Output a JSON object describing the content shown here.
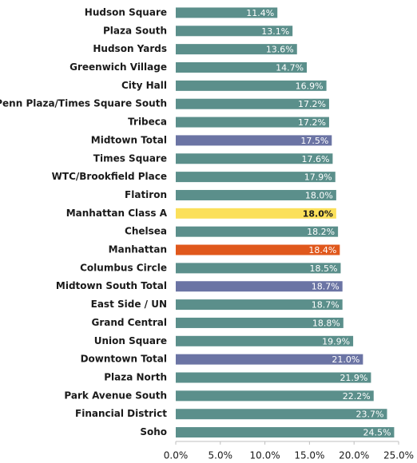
{
  "chart_data": {
    "type": "barh",
    "categories": [
      "Hudson Square",
      "Plaza South",
      "Hudson Yards",
      "Greenwich Village",
      "City Hall",
      "Penn Plaza/Times Square South",
      "Tribeca",
      "Midtown Total",
      "Times Square",
      "WTC/Brookfield Place",
      "Flatiron",
      "Manhattan Class A",
      "Chelsea",
      "Manhattan",
      "Columbus Circle",
      "Midtown South Total",
      "East Side / UN",
      "Grand Central",
      "Union Square",
      "Downtown Total",
      "Plaza North",
      "Park Avenue South",
      "Financial District",
      "Soho"
    ],
    "values": [
      11.4,
      13.1,
      13.6,
      14.7,
      16.9,
      17.2,
      17.2,
      17.5,
      17.6,
      17.9,
      18.0,
      18.0,
      18.2,
      18.4,
      18.5,
      18.7,
      18.7,
      18.8,
      19.9,
      21.0,
      21.9,
      22.2,
      23.7,
      24.5
    ],
    "value_labels": [
      "11.4%",
      "13.1%",
      "13.6%",
      "14.7%",
      "16.9%",
      "17.2%",
      "17.2%",
      "17.5%",
      "17.6%",
      "17.9%",
      "18.0%",
      "18.0%",
      "18.2%",
      "18.4%",
      "18.5%",
      "18.7%",
      "18.7%",
      "18.8%",
      "19.9%",
      "21.0%",
      "21.9%",
      "22.2%",
      "23.7%",
      "24.5%"
    ],
    "colors": [
      "#5b8f8b",
      "#5b8f8b",
      "#5b8f8b",
      "#5b8f8b",
      "#5b8f8b",
      "#5b8f8b",
      "#5b8f8b",
      "#6b74a4",
      "#5b8f8b",
      "#5b8f8b",
      "#5b8f8b",
      "#fbe05a",
      "#5b8f8b",
      "#e0581c",
      "#5b8f8b",
      "#6b74a4",
      "#5b8f8b",
      "#5b8f8b",
      "#5b8f8b",
      "#6b74a4",
      "#5b8f8b",
      "#5b8f8b",
      "#5b8f8b",
      "#5b8f8b"
    ],
    "xlim": [
      0,
      25
    ],
    "xticks": [
      {
        "value": 0,
        "label": "0.0%"
      },
      {
        "value": 5,
        "label": "5.0%"
      },
      {
        "value": 10,
        "label": "10.0%"
      },
      {
        "value": 15,
        "label": "15.0%"
      },
      {
        "value": 20,
        "label": "20.0%"
      },
      {
        "value": 25,
        "label": "25.0%"
      }
    ],
    "grid": false
  }
}
